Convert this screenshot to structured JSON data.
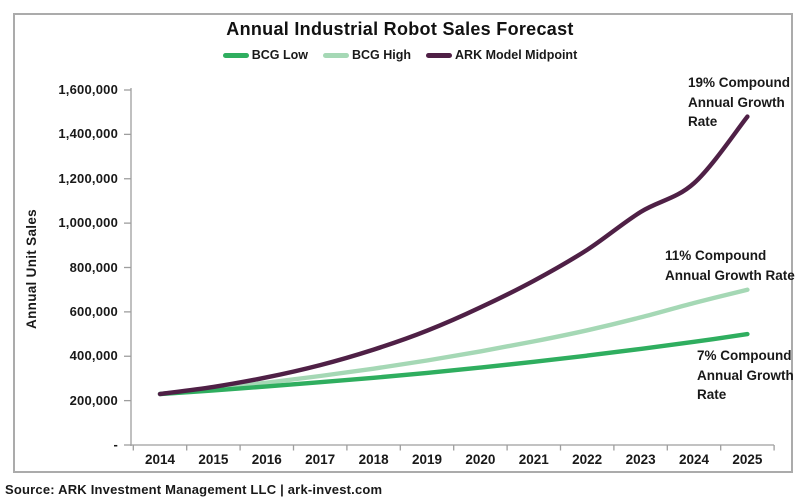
{
  "figure": {
    "title": "Annual Industrial Robot Sales Forecast",
    "source_line": "Source: ARK Investment Management LLC | ark-invest.com"
  },
  "legend": [
    {
      "label": "BCG Low",
      "color": "#2fae5f"
    },
    {
      "label": "BCG High",
      "color": "#a5d8b5"
    },
    {
      "label": "ARK Model Midpoint",
      "color": "#4f2046"
    }
  ],
  "annotations": [
    {
      "lines": [
        "19% Compound",
        "Annual Growth",
        "Rate"
      ]
    },
    {
      "lines": [
        "11% Compound",
        "Annual Growth Rate"
      ]
    },
    {
      "lines": [
        "7% Compound",
        "Annual Growth",
        "Rate"
      ]
    }
  ],
  "chart_data": {
    "type": "line",
    "title": "Annual Industrial Robot Sales Forecast",
    "xlabel": "",
    "ylabel": "Annual Unit Sales",
    "x": [
      2014,
      2015,
      2016,
      2017,
      2018,
      2019,
      2020,
      2021,
      2022,
      2023,
      2024,
      2025
    ],
    "series": [
      {
        "name": "BCG Low",
        "color": "#2fae5f",
        "cagr_label": "7% Compound Annual Growth Rate",
        "values": [
          230000,
          246000,
          264000,
          283000,
          303000,
          325000,
          349000,
          375000,
          403000,
          433000,
          465000,
          500000
        ]
      },
      {
        "name": "BCG High",
        "color": "#a5d8b5",
        "cagr_label": "11% Compound Annual Growth Rate",
        "values": [
          230000,
          254000,
          281000,
          311000,
          344000,
          381000,
          422000,
          467000,
          517000,
          575000,
          640000,
          700000
        ]
      },
      {
        "name": "ARK Model Midpoint",
        "color": "#4f2046",
        "cagr_label": "19% Compound Annual Growth Rate",
        "values": [
          230000,
          262000,
          305000,
          360000,
          430000,
          515000,
          620000,
          740000,
          880000,
          1050000,
          1180000,
          1480000
        ]
      }
    ],
    "ylim": [
      0,
      1600000
    ],
    "ytick_labels": [
      "-",
      "200,000",
      "400,000",
      "600,000",
      "800,000",
      "1,000,000",
      "1,200,000",
      "1,400,000",
      "1,600,000"
    ],
    "grid": false,
    "legend_position": "top"
  }
}
